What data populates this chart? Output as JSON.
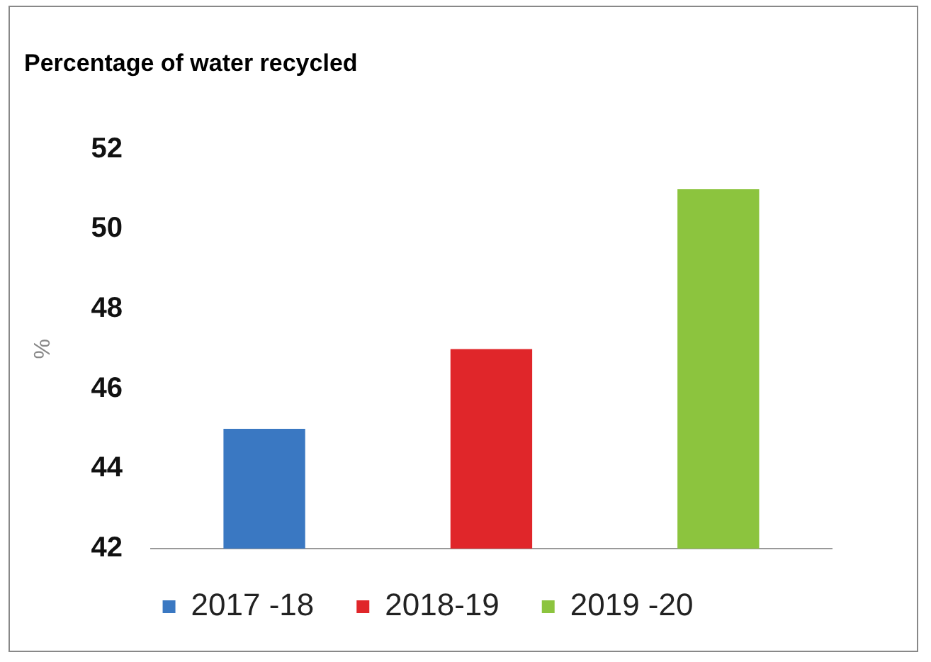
{
  "chart_data": {
    "type": "bar",
    "title": "Percentage of water recycled",
    "ylabel": "%",
    "categories": [
      null,
      null,
      null
    ],
    "series": [
      {
        "name": "2017 -18",
        "color": "#3a78c2",
        "values": [
          45,
          null,
          null
        ]
      },
      {
        "name": "2018-19",
        "color": "#e0262a",
        "values": [
          null,
          47,
          null
        ]
      },
      {
        "name": "2019 -20",
        "color": "#8cc43e",
        "values": [
          null,
          null,
          51
        ]
      }
    ],
    "ylim": [
      42,
      52
    ],
    "yticks": [
      42,
      44,
      46,
      48,
      50,
      52
    ],
    "grid": false,
    "legend": "bottom"
  }
}
